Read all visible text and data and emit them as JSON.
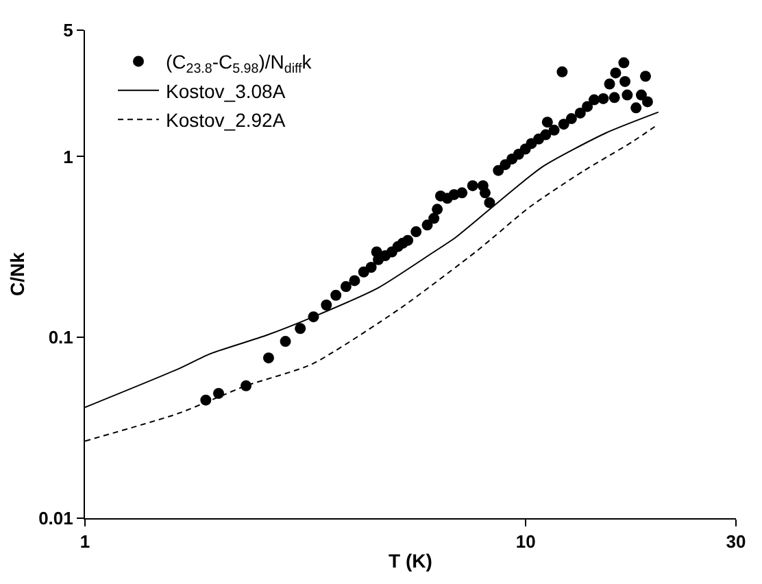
{
  "chart_data": {
    "type": "scatter",
    "xlabel": "T (K)",
    "ylabel": "C/Nk",
    "log": "xy",
    "xlim": [
      1,
      30
    ],
    "ylim": [
      0.01,
      5
    ],
    "xticks": [
      1,
      10,
      30
    ],
    "yticks": [
      0.01,
      0.1,
      1,
      5
    ],
    "grid": false,
    "legend": "top left",
    "series": [
      {
        "name": "(C$_{23.8}$-C$_{5.98}$)/N$_{diff}$k",
        "type": "scatter",
        "marker": "circle",
        "color": "#000000",
        "x": [
          1.88,
          2.01,
          2.32,
          2.61,
          2.85,
          3.08,
          3.3,
          3.53,
          3.71,
          3.91,
          4.09,
          4.29,
          4.46,
          4.59,
          4.63,
          4.8,
          4.97,
          5.13,
          5.26,
          5.4,
          5.64,
          5.98,
          6.19,
          6.3,
          6.41,
          6.64,
          6.88,
          7.17,
          7.58,
          8.0,
          8.09,
          8.28,
          8.67,
          8.99,
          9.31,
          9.64,
          9.98,
          10.3,
          10.7,
          11.1,
          11.2,
          11.6,
          12.1,
          12.2,
          12.7,
          13.3,
          13.8,
          14.3,
          15.0,
          15.5,
          15.9,
          16.0,
          16.7,
          16.8,
          17.0,
          17.8,
          18.3,
          18.7,
          18.9
        ],
        "values": [
          0.045,
          0.049,
          0.054,
          0.077,
          0.095,
          0.112,
          0.13,
          0.151,
          0.171,
          0.191,
          0.206,
          0.23,
          0.244,
          0.297,
          0.269,
          0.283,
          0.297,
          0.318,
          0.332,
          0.344,
          0.384,
          0.418,
          0.455,
          0.511,
          0.605,
          0.588,
          0.616,
          0.63,
          0.69,
          0.69,
          0.63,
          0.556,
          0.838,
          0.902,
          0.97,
          1.03,
          1.1,
          1.18,
          1.25,
          1.32,
          1.55,
          1.4,
          2.94,
          1.51,
          1.62,
          1.74,
          1.89,
          2.06,
          2.09,
          2.52,
          2.12,
          2.9,
          3.3,
          2.6,
          2.19,
          1.86,
          2.19,
          2.78,
          2.01
        ]
      },
      {
        "name": "Kostov_3.08A",
        "type": "line",
        "line_style": "solid",
        "color": "#000000",
        "x": [
          1,
          1.63,
          1.92,
          2.59,
          3.3,
          4.63,
          6.19,
          6.88,
          8.28,
          10.9,
          15.2,
          20
        ],
        "values": [
          0.041,
          0.067,
          0.081,
          0.103,
          0.13,
          0.188,
          0.297,
          0.352,
          0.51,
          0.876,
          1.35,
          1.76
        ]
      },
      {
        "name": "Kostov_2.92A",
        "type": "line",
        "line_style": "dashed",
        "color": "#000000",
        "x": [
          1,
          1.63,
          2.32,
          3.27,
          5.2,
          7.7,
          8.38,
          10.2,
          13.5,
          17.4,
          20
        ],
        "values": [
          0.0267,
          0.038,
          0.054,
          0.071,
          0.145,
          0.297,
          0.352,
          0.525,
          0.83,
          1.2,
          1.51
        ]
      }
    ]
  }
}
